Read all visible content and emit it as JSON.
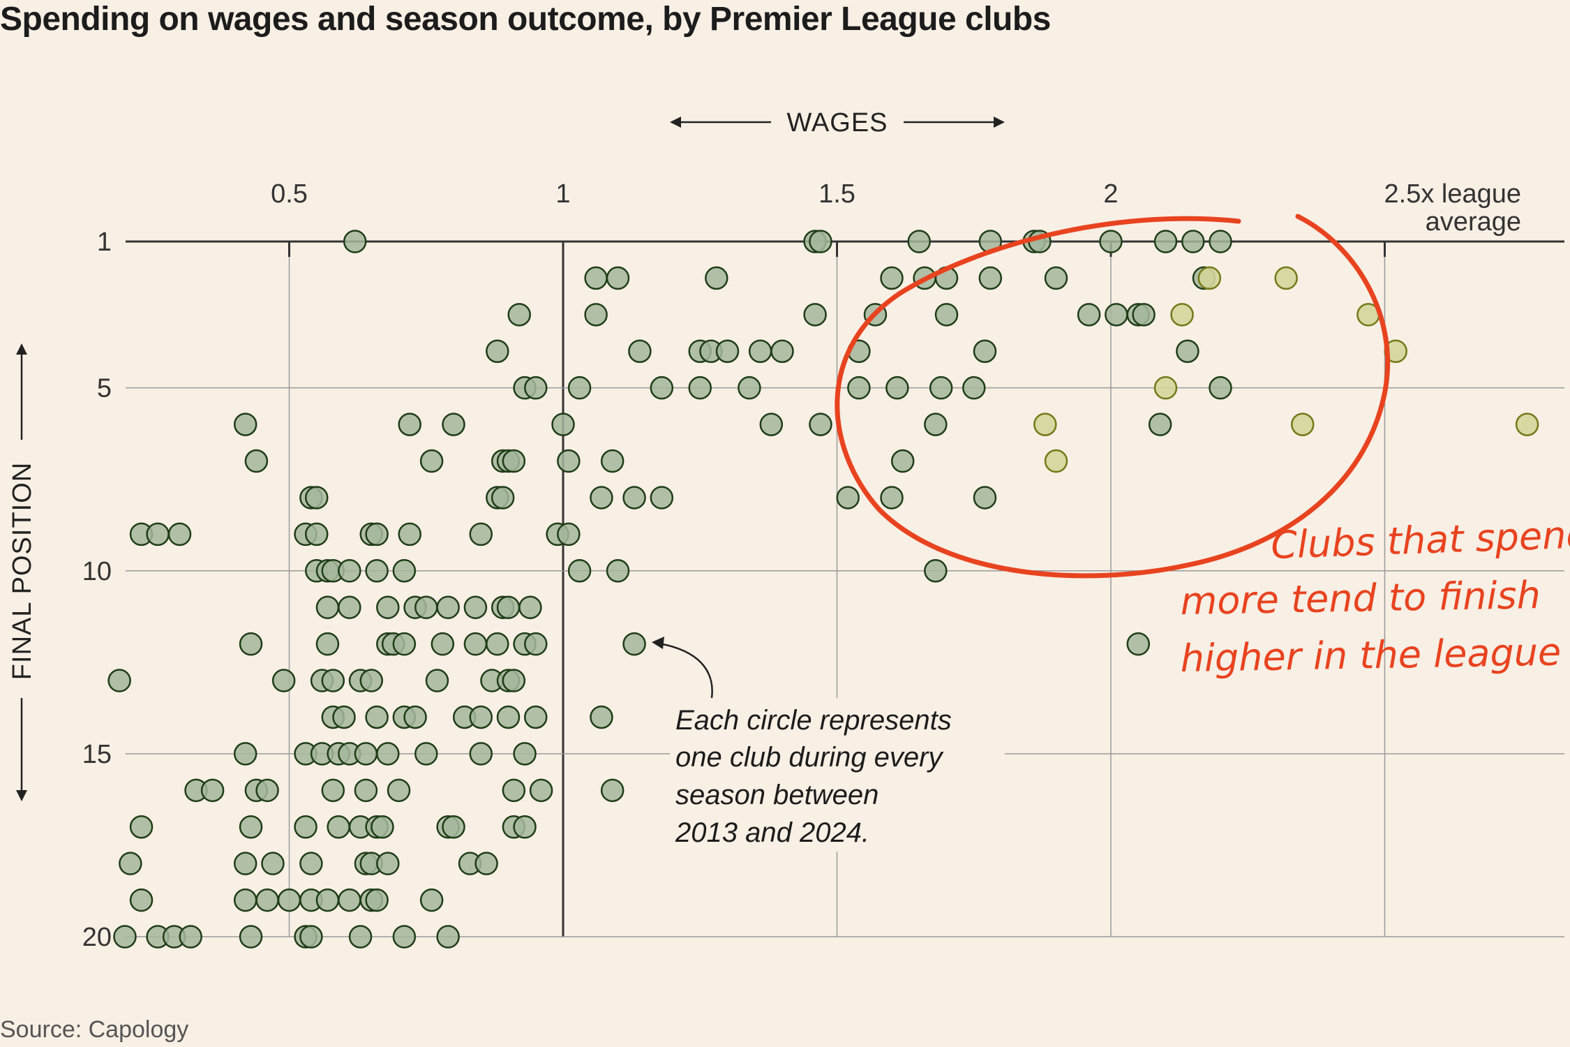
{
  "title": "Spending on wages and season outcome, by Premier League clubs",
  "source": "Source: Capology",
  "annotation": {
    "lines": [
      "Each circle represents",
      "one club during every",
      "season between",
      "2013 and 2024."
    ]
  },
  "highlight_note": {
    "lines": [
      "Clubs that spend",
      "more tend to finish",
      "higher in the league"
    ]
  },
  "colors": {
    "point_fill": "#a5b69c",
    "point_stroke": "#1f3d17",
    "highlight_fill": "#d3d59a",
    "highlight_stroke": "#737a18",
    "circle_red": "#e8431f",
    "grid": "#9a9a9a",
    "axis": "#333333"
  },
  "chart_data": {
    "type": "scatter",
    "title": "Spending on wages and season outcome, by Premier League clubs",
    "xlabel": "WAGES",
    "ylabel": "FINAL POSITION",
    "x_tick_labels": [
      "0.5",
      "1",
      "1.5",
      "2",
      "2.5x league",
      "average"
    ],
    "x_ticks": [
      0.5,
      1,
      1.5,
      2,
      2.5
    ],
    "y_ticks": [
      1,
      5,
      10,
      15,
      20
    ],
    "y_tick_labels": [
      "1",
      "5",
      "10",
      "15",
      "20"
    ],
    "xlim": [
      0.15,
      2.78
    ],
    "ylim": [
      1,
      20
    ],
    "y_inverted": true,
    "grid": true,
    "series": [
      {
        "values": [
          [
            0.62,
            1
          ],
          [
            1.46,
            1
          ],
          [
            1.47,
            1
          ],
          [
            1.65,
            1
          ],
          [
            1.78,
            1
          ],
          [
            1.86,
            1
          ],
          [
            1.87,
            1
          ],
          [
            2.0,
            1
          ],
          [
            2.1,
            1
          ],
          [
            2.15,
            1
          ],
          [
            2.2,
            1
          ],
          [
            1.06,
            2
          ],
          [
            1.1,
            2
          ],
          [
            1.28,
            2
          ],
          [
            1.6,
            2
          ],
          [
            1.66,
            2
          ],
          [
            1.7,
            2
          ],
          [
            1.78,
            2
          ],
          [
            1.9,
            2
          ],
          [
            2.17,
            2
          ],
          [
            0.92,
            3
          ],
          [
            1.06,
            3
          ],
          [
            1.46,
            3
          ],
          [
            1.57,
            3
          ],
          [
            1.7,
            3
          ],
          [
            1.96,
            3
          ],
          [
            2.01,
            3
          ],
          [
            2.05,
            3
          ],
          [
            2.06,
            3
          ],
          [
            0.88,
            4
          ],
          [
            1.14,
            4
          ],
          [
            1.25,
            4
          ],
          [
            1.27,
            4
          ],
          [
            1.3,
            4
          ],
          [
            1.36,
            4
          ],
          [
            1.4,
            4
          ],
          [
            1.54,
            4
          ],
          [
            1.77,
            4
          ],
          [
            2.14,
            4
          ],
          [
            0.93,
            5
          ],
          [
            0.95,
            5
          ],
          [
            1.03,
            5
          ],
          [
            1.18,
            5
          ],
          [
            1.25,
            5
          ],
          [
            1.34,
            5
          ],
          [
            1.54,
            5
          ],
          [
            1.61,
            5
          ],
          [
            1.69,
            5
          ],
          [
            1.75,
            5
          ],
          [
            2.2,
            5
          ],
          [
            0.42,
            6
          ],
          [
            0.72,
            6
          ],
          [
            0.8,
            6
          ],
          [
            1.0,
            6
          ],
          [
            1.38,
            6
          ],
          [
            1.47,
            6
          ],
          [
            1.68,
            6
          ],
          [
            2.09,
            6
          ],
          [
            0.44,
            7
          ],
          [
            0.76,
            7
          ],
          [
            0.89,
            7
          ],
          [
            0.9,
            7
          ],
          [
            0.91,
            7
          ],
          [
            1.01,
            7
          ],
          [
            1.09,
            7
          ],
          [
            1.62,
            7
          ],
          [
            0.54,
            8
          ],
          [
            0.55,
            8
          ],
          [
            0.88,
            8
          ],
          [
            0.89,
            8
          ],
          [
            1.07,
            8
          ],
          [
            1.13,
            8
          ],
          [
            1.18,
            8
          ],
          [
            1.52,
            8
          ],
          [
            1.6,
            8
          ],
          [
            1.77,
            8
          ],
          [
            0.23,
            9
          ],
          [
            0.26,
            9
          ],
          [
            0.3,
            9
          ],
          [
            0.53,
            9
          ],
          [
            0.55,
            9
          ],
          [
            0.65,
            9
          ],
          [
            0.66,
            9
          ],
          [
            0.72,
            9
          ],
          [
            0.85,
            9
          ],
          [
            0.99,
            9
          ],
          [
            1.01,
            9
          ],
          [
            0.55,
            10
          ],
          [
            0.57,
            10
          ],
          [
            0.58,
            10
          ],
          [
            0.61,
            10
          ],
          [
            0.66,
            10
          ],
          [
            0.71,
            10
          ],
          [
            1.03,
            10
          ],
          [
            1.1,
            10
          ],
          [
            1.68,
            10
          ],
          [
            0.57,
            11
          ],
          [
            0.61,
            11
          ],
          [
            0.68,
            11
          ],
          [
            0.73,
            11
          ],
          [
            0.75,
            11
          ],
          [
            0.79,
            11
          ],
          [
            0.84,
            11
          ],
          [
            0.89,
            11
          ],
          [
            0.9,
            11
          ],
          [
            0.94,
            11
          ],
          [
            0.43,
            12
          ],
          [
            0.57,
            12
          ],
          [
            0.68,
            12
          ],
          [
            0.69,
            12
          ],
          [
            0.71,
            12
          ],
          [
            0.78,
            12
          ],
          [
            0.84,
            12
          ],
          [
            0.88,
            12
          ],
          [
            0.93,
            12
          ],
          [
            0.95,
            12
          ],
          [
            1.13,
            12
          ],
          [
            2.05,
            12
          ],
          [
            0.19,
            13
          ],
          [
            0.49,
            13
          ],
          [
            0.56,
            13
          ],
          [
            0.58,
            13
          ],
          [
            0.63,
            13
          ],
          [
            0.65,
            13
          ],
          [
            0.77,
            13
          ],
          [
            0.87,
            13
          ],
          [
            0.9,
            13
          ],
          [
            0.91,
            13
          ],
          [
            0.58,
            14
          ],
          [
            0.6,
            14
          ],
          [
            0.66,
            14
          ],
          [
            0.71,
            14
          ],
          [
            0.73,
            14
          ],
          [
            0.82,
            14
          ],
          [
            0.85,
            14
          ],
          [
            0.9,
            14
          ],
          [
            0.95,
            14
          ],
          [
            1.07,
            14
          ],
          [
            0.42,
            15
          ],
          [
            0.53,
            15
          ],
          [
            0.56,
            15
          ],
          [
            0.59,
            15
          ],
          [
            0.61,
            15
          ],
          [
            0.64,
            15
          ],
          [
            0.68,
            15
          ],
          [
            0.75,
            15
          ],
          [
            0.85,
            15
          ],
          [
            0.93,
            15
          ],
          [
            0.33,
            16
          ],
          [
            0.36,
            16
          ],
          [
            0.44,
            16
          ],
          [
            0.46,
            16
          ],
          [
            0.58,
            16
          ],
          [
            0.64,
            16
          ],
          [
            0.7,
            16
          ],
          [
            0.91,
            16
          ],
          [
            0.96,
            16
          ],
          [
            1.09,
            16
          ],
          [
            0.23,
            17
          ],
          [
            0.43,
            17
          ],
          [
            0.53,
            17
          ],
          [
            0.59,
            17
          ],
          [
            0.63,
            17
          ],
          [
            0.66,
            17
          ],
          [
            0.67,
            17
          ],
          [
            0.79,
            17
          ],
          [
            0.8,
            17
          ],
          [
            0.91,
            17
          ],
          [
            0.93,
            17
          ],
          [
            0.21,
            18
          ],
          [
            0.42,
            18
          ],
          [
            0.47,
            18
          ],
          [
            0.54,
            18
          ],
          [
            0.64,
            18
          ],
          [
            0.65,
            18
          ],
          [
            0.68,
            18
          ],
          [
            0.83,
            18
          ],
          [
            0.86,
            18
          ],
          [
            0.23,
            19
          ],
          [
            0.42,
            19
          ],
          [
            0.46,
            19
          ],
          [
            0.5,
            19
          ],
          [
            0.54,
            19
          ],
          [
            0.57,
            19
          ],
          [
            0.61,
            19
          ],
          [
            0.65,
            19
          ],
          [
            0.66,
            19
          ],
          [
            0.76,
            19
          ],
          [
            0.2,
            20
          ],
          [
            0.26,
            20
          ],
          [
            0.29,
            20
          ],
          [
            0.32,
            20
          ],
          [
            0.43,
            20
          ],
          [
            0.53,
            20
          ],
          [
            0.54,
            20
          ],
          [
            0.63,
            20
          ],
          [
            0.71,
            20
          ],
          [
            0.79,
            20
          ]
        ]
      },
      {
        "highlight": true,
        "values": [
          [
            2.18,
            2
          ],
          [
            2.32,
            2
          ],
          [
            2.13,
            3
          ],
          [
            2.47,
            3
          ],
          [
            2.52,
            4
          ],
          [
            2.1,
            5
          ],
          [
            1.88,
            6
          ],
          [
            2.35,
            6
          ],
          [
            2.76,
            6
          ],
          [
            1.9,
            7
          ]
        ]
      }
    ]
  }
}
